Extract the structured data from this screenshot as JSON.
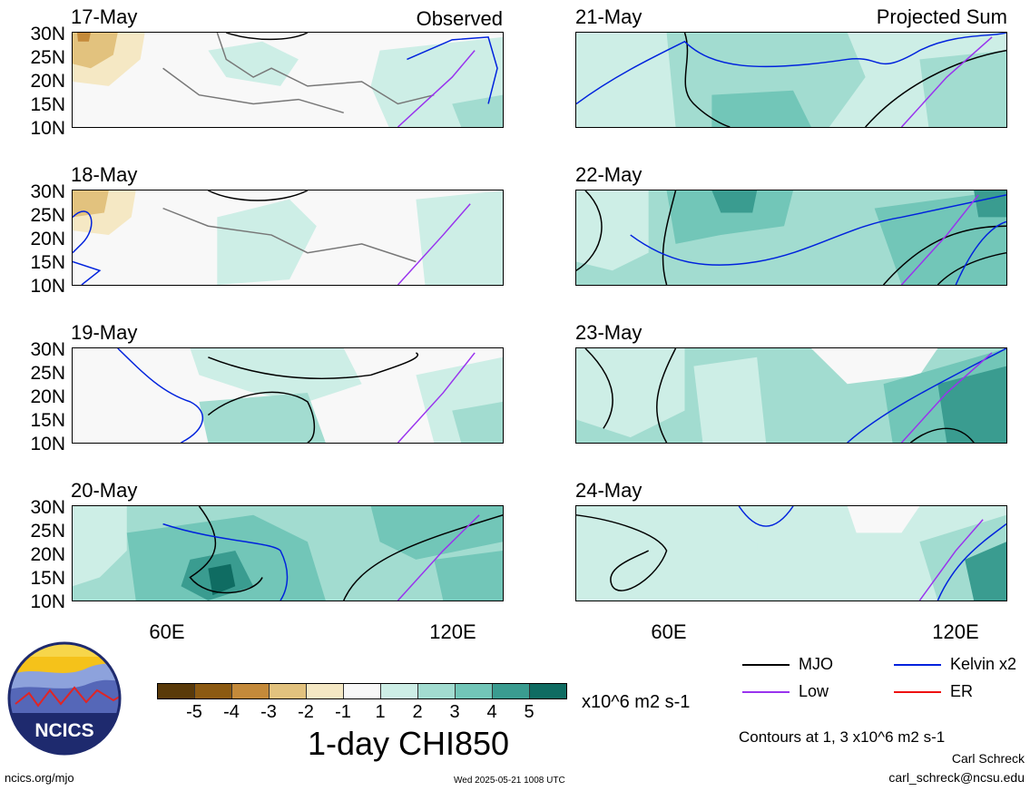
{
  "panels_left": [
    {
      "date": "17-May",
      "corner": "Observed"
    },
    {
      "date": "18-May",
      "corner": ""
    },
    {
      "date": "19-May",
      "corner": ""
    },
    {
      "date": "20-May",
      "corner": ""
    }
  ],
  "panels_right": [
    {
      "date": "21-May",
      "corner": "Projected Sum"
    },
    {
      "date": "22-May",
      "corner": ""
    },
    {
      "date": "23-May",
      "corner": ""
    },
    {
      "date": "24-May",
      "corner": ""
    }
  ],
  "lat_labels": [
    "30N",
    "25N",
    "20N",
    "15N",
    "10N"
  ],
  "lon_labels": [
    "60E",
    "120E"
  ],
  "colorbar": {
    "colors": [
      "#5a3a0a",
      "#8c5a12",
      "#c48a3a",
      "#e2c27e",
      "#f5e8c4",
      "#f8f8f8",
      "#cdeee6",
      "#a2dcd0",
      "#72c6b8",
      "#3a9c90",
      "#0f6c62",
      "#073c36"
    ],
    "labels": [
      "-5",
      "-4",
      "-3",
      "-2",
      "-1",
      "1",
      "2",
      "3",
      "4",
      "5"
    ],
    "units": "x10^6 m2 s-1",
    "title": "1-day CHI850"
  },
  "legend": {
    "items": [
      {
        "label": "MJO",
        "color": "#000000"
      },
      {
        "label": "Kelvin x2",
        "color": "#0022dd"
      },
      {
        "label": "Low",
        "color": "#9933ee"
      },
      {
        "label": "ER",
        "color": "#ee1111"
      }
    ],
    "contours_note": "Contours at 1, 3 x10^6 m2 s-1",
    "author": "Carl Schreck",
    "email": "carl_schreck@ncsu.edu"
  },
  "logo_text": "NCICS",
  "footer_left": "ncics.org/mjo",
  "footer_center": "Wed 2025-05-21 1008 UTC"
}
